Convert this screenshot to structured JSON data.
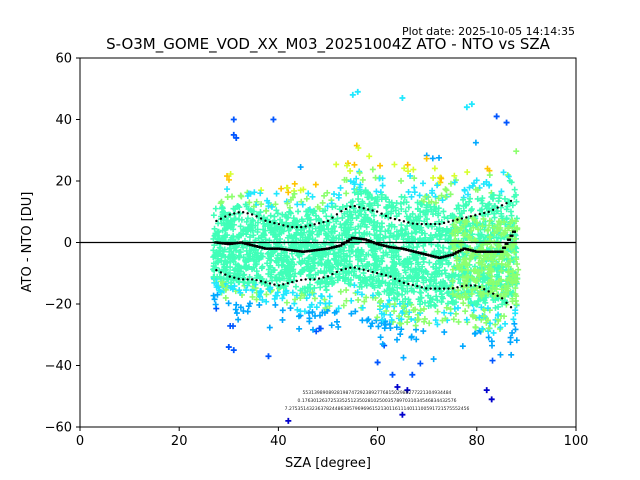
{
  "chart_data": {
    "type": "scatter",
    "title": "S-O3M_GOME_VOD_XX_M03_20251004Z ATO - NTO vs SZA",
    "plot_date": "Plot date: 2025-10-05 14:14:35",
    "xlabel": "SZA [degree]",
    "ylabel": "ATO - NTO [DU]",
    "xlim": [
      0,
      100
    ],
    "ylim": [
      -60,
      60
    ],
    "xticks": [
      0,
      20,
      40,
      60,
      80,
      100
    ],
    "yticks": [
      -60,
      -40,
      -20,
      0,
      20,
      40,
      60
    ],
    "grid": false,
    "legend": "none",
    "zero_line": 0,
    "colors": {
      "density_scale": [
        "#0000cc",
        "#0055ff",
        "#00a8ff",
        "#20e8ff",
        "#40ffb8",
        "#8cff6e",
        "#d8ff30",
        "#ffc400"
      ],
      "mean_line": "#000000"
    },
    "sza_bins": [
      27.5,
      30,
      32.5,
      35,
      37.5,
      40,
      42.5,
      45,
      47.5,
      50,
      52.5,
      55,
      57.5,
      60,
      62.5,
      65,
      67.5,
      70,
      72.5,
      75,
      77.5,
      80,
      82.5,
      85,
      87.5
    ],
    "scatter_min": [
      -28,
      -32,
      -33,
      -30,
      -29,
      -31,
      -30,
      -33,
      -32,
      -33,
      -35,
      -30,
      -36,
      -40,
      -43,
      -45,
      -42,
      -41,
      -40,
      -40,
      -39,
      -41,
      -43,
      -47,
      -50
    ],
    "scatter_max": [
      22,
      25,
      27,
      26,
      25,
      26,
      27,
      28,
      26,
      27,
      31,
      36,
      39,
      34,
      33,
      32,
      34,
      34,
      33,
      34,
      35,
      37,
      38,
      38,
      37
    ],
    "outliers": [
      {
        "x": 31,
        "y": 40
      },
      {
        "x": 31.5,
        "y": 34
      },
      {
        "x": 31,
        "y": 35
      },
      {
        "x": 39,
        "y": 40
      },
      {
        "x": 55,
        "y": 48
      },
      {
        "x": 56,
        "y": 49
      },
      {
        "x": 65,
        "y": 47
      },
      {
        "x": 78,
        "y": 44
      },
      {
        "x": 79,
        "y": 45
      },
      {
        "x": 84,
        "y": 41
      },
      {
        "x": 86,
        "y": 39
      },
      {
        "x": 30,
        "y": -34
      },
      {
        "x": 31,
        "y": -35
      },
      {
        "x": 38,
        "y": -37
      },
      {
        "x": 42,
        "y": -58
      },
      {
        "x": 60,
        "y": -39
      },
      {
        "x": 63,
        "y": -43
      },
      {
        "x": 64,
        "y": -47
      },
      {
        "x": 65,
        "y": -56
      },
      {
        "x": 66,
        "y": -48
      },
      {
        "x": 67,
        "y": -43
      },
      {
        "x": 82,
        "y": -48
      },
      {
        "x": 83,
        "y": -51
      }
    ],
    "series": [
      {
        "values": [
          0,
          -0.5,
          0,
          -1,
          -2,
          -2,
          -2.5,
          -3,
          -2.5,
          -2,
          -1,
          1.5,
          1,
          -0.5,
          -1.5,
          -2,
          -3,
          -4,
          -5,
          -4,
          -2,
          -3,
          -3,
          -3,
          3.5
        ]
      },
      {
        "values": [
          7,
          9,
          10,
          9,
          7,
          6,
          5,
          5,
          6,
          7,
          10,
          12,
          11,
          10,
          8,
          7,
          6,
          6,
          6,
          7,
          8,
          9,
          10,
          12,
          14
        ]
      },
      {
        "values": [
          -9,
          -11,
          -12,
          -12,
          -13,
          -14,
          -13,
          -12,
          -12,
          -11,
          -9,
          -8,
          -9,
          -10,
          -11,
          -13,
          -14,
          -15,
          -15,
          -15,
          -14,
          -14,
          -16,
          -18,
          -22
        ]
      }
    ],
    "bin_annotations": [
      "5531398908928198747292389277681502988277221304934484",
      "0.176301263725335251235028102500357897031034546834432576",
      "7.275351432363782448638579696961521301161114011100591721575552456"
    ]
  }
}
